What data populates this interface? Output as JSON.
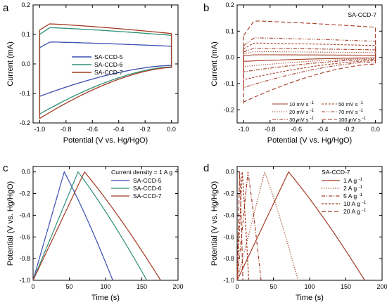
{
  "chart_data": [
    {
      "panel": "a",
      "type": "line",
      "xlabel": "Potential (V vs. Hg/HgO)",
      "ylabel": "Current (mA)",
      "xlim": [
        -1.05,
        0.05
      ],
      "ylim": [
        -0.2,
        0.2
      ],
      "xticks": [
        -1.0,
        -0.8,
        -0.6,
        -0.4,
        -0.2,
        0.0
      ],
      "xtick_labels": [
        "-1.0",
        "-0.8",
        "-0.6",
        "-0.4",
        "-0.2",
        "0.0"
      ],
      "yticks": [
        -0.2,
        -0.1,
        0.0,
        0.1,
        0.2
      ],
      "ytick_labels": [
        "-0.2",
        "-0.1",
        "0.0",
        "0.1",
        "0.2"
      ],
      "legend_position": "center",
      "series": [
        {
          "name": "SA-CCD-5",
          "color": "#3a4fb0",
          "cv": {
            "x_start": -1.0,
            "x_end": 0.0,
            "top_start": 0.055,
            "top_peak": 0.075,
            "top_end": 0.06,
            "bot_start": -0.11,
            "bot_end": -0.005,
            "tail": -0.105
          }
        },
        {
          "name": "SA-CCD-6",
          "color": "#2f8f76",
          "cv": {
            "x_start": -1.0,
            "x_end": 0.0,
            "top_start": 0.1,
            "top_peak": 0.124,
            "top_end": 0.097,
            "bot_start": -0.17,
            "bot_end": -0.01,
            "tail": -0.17
          }
        },
        {
          "name": "SA-CCD-7",
          "color": "#a33b22",
          "cv": {
            "x_start": -1.0,
            "x_end": 0.0,
            "top_start": 0.115,
            "top_peak": 0.137,
            "top_end": 0.103,
            "bot_start": -0.185,
            "bot_end": -0.012,
            "tail": -0.185
          }
        }
      ]
    },
    {
      "panel": "b",
      "type": "line",
      "title": "SA-CCD-7",
      "xlabel": "Potential (V vs. Hg/HgO)",
      "ylabel": "Current (mA)",
      "xlim": [
        -1.05,
        0.05
      ],
      "ylim": [
        -0.25,
        0.2
      ],
      "xticks": [
        -1.0,
        -0.8,
        -0.6,
        -0.4,
        -0.2,
        0.0
      ],
      "xtick_labels": [
        "-1.0",
        "-0.8",
        "-0.6",
        "-0.4",
        "-0.2",
        "0.0"
      ],
      "yticks": [
        -0.2,
        -0.1,
        0.0,
        0.1,
        0.2
      ],
      "ytick_labels": [
        "-0.2",
        "-0.1",
        "0.0",
        "0.1",
        "0.2"
      ],
      "legend_position": "bottom-right",
      "series": [
        {
          "name": "10 mV s",
          "color": "#a33b22",
          "dash": "solid",
          "cv": {
            "top": 0.01,
            "bot": -0.015
          }
        },
        {
          "name": "20 mV s",
          "color": "#a33b22",
          "dash": "dot",
          "cv": {
            "top": 0.022,
            "bot": -0.035
          }
        },
        {
          "name": "30 mV s",
          "color": "#a33b22",
          "dash": "dashdot",
          "cv": {
            "top": 0.035,
            "bot": -0.055
          }
        },
        {
          "name": "50 mV s",
          "color": "#a33b22",
          "dash": "shortdash",
          "cv": {
            "top": 0.055,
            "bot": -0.085
          }
        },
        {
          "name": "70 mV s",
          "color": "#a33b22",
          "dash": "dashdotdot",
          "cv": {
            "top": 0.075,
            "bot": -0.115
          }
        },
        {
          "name": "100 mV s",
          "color": "#a33b22",
          "dash": "longdash",
          "cv": {
            "top": 0.14,
            "bot": -0.17
          }
        }
      ]
    },
    {
      "panel": "c",
      "type": "line",
      "xlabel": "Time (s)",
      "ylabel": "Potential (V vs. Hg/HgO)",
      "xlim": [
        0,
        200
      ],
      "ylim": [
        -1.0,
        0.05
      ],
      "xticks": [
        0,
        50,
        100,
        150,
        200
      ],
      "xtick_labels": [
        "0",
        "50",
        "100",
        "150",
        "200"
      ],
      "yticks": [
        -1.0,
        -0.8,
        -0.6,
        -0.4,
        -0.2,
        0.0
      ],
      "ytick_labels": [
        "-1.0",
        "-0.8",
        "-0.6",
        "-0.4",
        "-0.2",
        "0.0"
      ],
      "legend_title": "Current density = 1 A g",
      "legend_position": "top-right",
      "series": [
        {
          "name": "SA-CCD-5",
          "color": "#3a4fb0",
          "t_peak": 43,
          "t_end": 110
        },
        {
          "name": "SA-CCD-6",
          "color": "#2f8f76",
          "t_peak": 62,
          "t_end": 157
        },
        {
          "name": "SA-CCD-7",
          "color": "#a33b22",
          "t_peak": 71,
          "t_end": 176
        }
      ]
    },
    {
      "panel": "d",
      "type": "line",
      "xlabel": "Time (s)",
      "ylabel": "Potential (V vs. Hg/HgO)",
      "xlim": [
        0,
        200
      ],
      "ylim": [
        -1.0,
        0.05
      ],
      "xticks": [
        0,
        50,
        100,
        150,
        200
      ],
      "xtick_labels": [
        "0",
        "50",
        "100",
        "150",
        "200"
      ],
      "yticks": [
        -1.0,
        -0.8,
        -0.6,
        -0.4,
        -0.2,
        0.0
      ],
      "ytick_labels": [
        "-1.0",
        "-0.8",
        "-0.6",
        "-0.4",
        "-0.2",
        "0.0"
      ],
      "legend_title": "SA-CCD-7",
      "legend_position": "top-right",
      "series": [
        {
          "name": "1 A g",
          "color": "#a33b22",
          "dash": "solid",
          "t_peak": 71,
          "t_end": 176
        },
        {
          "name": "2 A g",
          "color": "#a33b22",
          "dash": "dot",
          "t_peak": 38,
          "t_end": 84
        },
        {
          "name": "5 A g",
          "color": "#a33b22",
          "dash": "dashdot",
          "t_peak": 15,
          "t_end": 33
        },
        {
          "name": "10 A g",
          "color": "#a33b22",
          "dash": "shortdash",
          "t_peak": 7,
          "t_end": 16
        },
        {
          "name": "20 A g",
          "color": "#a33b22",
          "dash": "longdash",
          "t_peak": 3.5,
          "t_end": 8
        }
      ]
    }
  ],
  "panel_labels": [
    "a",
    "b",
    "c",
    "d"
  ],
  "unit_superscript": "-1"
}
